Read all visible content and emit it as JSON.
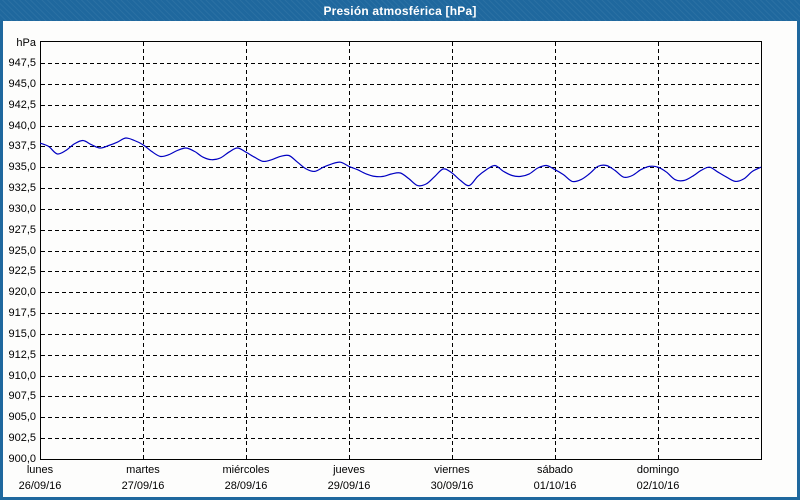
{
  "window": {
    "title": "Presión atmosférica [hPa]"
  },
  "colors": {
    "frame": "#1f689e",
    "titlebar": "#1f689e",
    "title_text": "#ffffff",
    "plot_background": "#fdfdfc",
    "grid": "#000000",
    "axis_text": "#000000",
    "line": "#0000c2"
  },
  "chart_data": {
    "type": "line",
    "title": "Presión atmosférica [hPa]",
    "y_unit_label": "hPa",
    "ylabel": "hPa",
    "ylim": [
      900.0,
      950.0
    ],
    "y_tick_step": 2.5,
    "y_tick_labels": [
      "947,5",
      "945,0",
      "942,5",
      "940,0",
      "937,5",
      "935,0",
      "932,5",
      "930,0",
      "927,5",
      "925,0",
      "922,5",
      "920,0",
      "917,5",
      "915,0",
      "912,5",
      "910,0",
      "907,5",
      "905,0",
      "902,5",
      "900,0"
    ],
    "grid": "dashed-black",
    "legend_position": "none",
    "x_ticks": [
      {
        "weekday": "lunes",
        "date": "26/09/16"
      },
      {
        "weekday": "martes",
        "date": "27/09/16"
      },
      {
        "weekday": "miércoles",
        "date": "28/09/16"
      },
      {
        "weekday": "jueves",
        "date": "29/09/16"
      },
      {
        "weekday": "viernes",
        "date": "30/09/16"
      },
      {
        "weekday": "sábado",
        "date": "01/10/16"
      },
      {
        "weekday": "domingo",
        "date": "02/10/16"
      }
    ],
    "x_span_hours": 168,
    "sample_interval_hours": 2,
    "series": [
      {
        "name": "Presión atmosférica",
        "unit": "hPa",
        "values": [
          937.9,
          937.5,
          936.6,
          937.0,
          937.8,
          938.2,
          937.7,
          937.3,
          937.6,
          938.0,
          938.5,
          938.2,
          937.7,
          936.9,
          936.3,
          936.5,
          937.0,
          937.3,
          936.9,
          936.2,
          935.9,
          936.1,
          936.8,
          937.3,
          936.8,
          936.2,
          935.7,
          935.9,
          936.3,
          936.4,
          935.6,
          934.8,
          934.5,
          935.0,
          935.4,
          935.6,
          935.1,
          934.7,
          934.2,
          933.9,
          933.9,
          934.2,
          934.3,
          933.6,
          932.8,
          933.0,
          933.9,
          934.8,
          934.3,
          933.4,
          932.8,
          933.9,
          934.7,
          935.2,
          934.5,
          934.0,
          933.9,
          934.2,
          934.9,
          935.2,
          934.7,
          934.1,
          933.3,
          933.5,
          934.2,
          935.1,
          935.2,
          934.6,
          933.8,
          934.0,
          934.7,
          935.1,
          935.0,
          934.4,
          933.5,
          933.4,
          933.9,
          934.6,
          935.0,
          934.4,
          933.8,
          933.3,
          933.6,
          934.5,
          935.0
        ]
      }
    ]
  }
}
